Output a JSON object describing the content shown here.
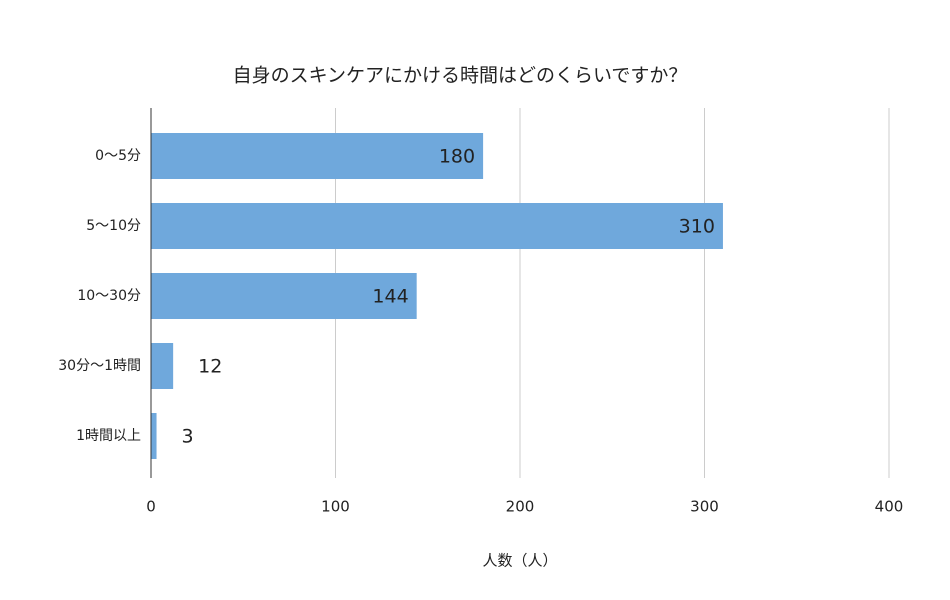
{
  "chart_data": {
    "type": "bar",
    "orientation": "horizontal",
    "title": "自身のスキンケアにかける時間はどのくらいですか？",
    "x_label": "人数（人）",
    "categories": [
      "0〜5分",
      "5〜10分",
      "10〜30分",
      "30分〜1時間",
      "1時間以上"
    ],
    "values": [
      180,
      310,
      144,
      12,
      3
    ],
    "color": "#6fa8dc",
    "xlim": [
      0,
      400
    ],
    "xticks": [
      0,
      100,
      200,
      300,
      400
    ],
    "grid": true
  }
}
